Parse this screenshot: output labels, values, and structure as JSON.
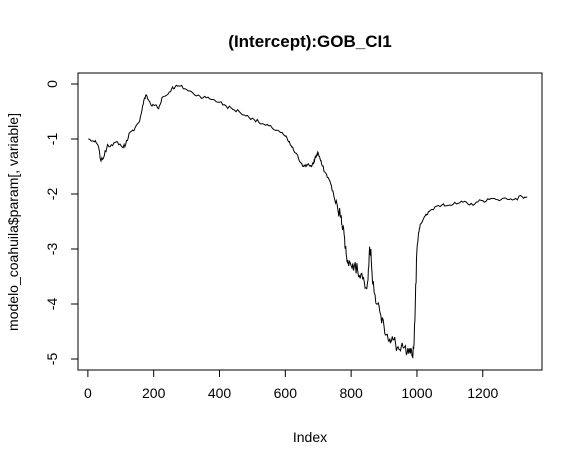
{
  "chart_data": {
    "type": "line",
    "title": "(Intercept):GOB_CI1",
    "xlabel": "Index",
    "ylabel": "modelo_coahuila$param[, variable]",
    "xlim": [
      -30,
      1380
    ],
    "ylim": [
      -5.2,
      0.2
    ],
    "xticks": [
      0,
      200,
      400,
      600,
      800,
      1000,
      1200
    ],
    "yticks": [
      0,
      -1,
      -2,
      -3,
      -4,
      -5
    ],
    "grid": false,
    "legend": "none",
    "color": "#000000",
    "series": [
      {
        "points": [
          [
            1,
            -1.0
          ],
          [
            20,
            -1.05
          ],
          [
            30,
            -1.1
          ],
          [
            40,
            -1.4
          ],
          [
            50,
            -1.3
          ],
          [
            60,
            -1.1
          ],
          [
            75,
            -1.12
          ],
          [
            90,
            -1.05
          ],
          [
            105,
            -1.15
          ],
          [
            115,
            -1.1
          ],
          [
            125,
            -0.9
          ],
          [
            140,
            -0.85
          ],
          [
            155,
            -0.7
          ],
          [
            165,
            -0.45
          ],
          [
            170,
            -0.3
          ],
          [
            178,
            -0.2
          ],
          [
            185,
            -0.3
          ],
          [
            195,
            -0.4
          ],
          [
            205,
            -0.38
          ],
          [
            215,
            -0.45
          ],
          [
            225,
            -0.25
          ],
          [
            240,
            -0.2
          ],
          [
            255,
            -0.08
          ],
          [
            265,
            -0.05
          ],
          [
            280,
            -0.04
          ],
          [
            300,
            -0.1
          ],
          [
            320,
            -0.17
          ],
          [
            340,
            -0.22
          ],
          [
            360,
            -0.25
          ],
          [
            380,
            -0.28
          ],
          [
            400,
            -0.33
          ],
          [
            420,
            -0.4
          ],
          [
            440,
            -0.46
          ],
          [
            460,
            -0.5
          ],
          [
            480,
            -0.58
          ],
          [
            500,
            -0.62
          ],
          [
            520,
            -0.7
          ],
          [
            540,
            -0.75
          ],
          [
            560,
            -0.8
          ],
          [
            580,
            -0.85
          ],
          [
            600,
            -0.95
          ],
          [
            610,
            -1.05
          ],
          [
            620,
            -1.15
          ],
          [
            630,
            -1.25
          ],
          [
            640,
            -1.35
          ],
          [
            650,
            -1.45
          ],
          [
            660,
            -1.5
          ],
          [
            670,
            -1.45
          ],
          [
            680,
            -1.5
          ],
          [
            685,
            -1.45
          ],
          [
            690,
            -1.35
          ],
          [
            695,
            -1.3
          ],
          [
            700,
            -1.25
          ],
          [
            705,
            -1.35
          ],
          [
            710,
            -1.45
          ],
          [
            720,
            -1.6
          ],
          [
            730,
            -1.7
          ],
          [
            740,
            -1.85
          ],
          [
            750,
            -2.1
          ],
          [
            760,
            -2.3
          ],
          [
            770,
            -2.4
          ],
          [
            775,
            -2.6
          ],
          [
            780,
            -2.8
          ],
          [
            785,
            -3.1
          ],
          [
            790,
            -3.2
          ],
          [
            800,
            -3.3
          ],
          [
            810,
            -3.3
          ],
          [
            820,
            -3.4
          ],
          [
            830,
            -3.45
          ],
          [
            840,
            -3.6
          ],
          [
            850,
            -3.6
          ],
          [
            855,
            -3.1
          ],
          [
            860,
            -3.0
          ],
          [
            865,
            -3.6
          ],
          [
            870,
            -3.8
          ],
          [
            880,
            -4.0
          ],
          [
            890,
            -4.2
          ],
          [
            900,
            -4.4
          ],
          [
            910,
            -4.55
          ],
          [
            920,
            -4.7
          ],
          [
            930,
            -4.65
          ],
          [
            940,
            -4.8
          ],
          [
            950,
            -4.85
          ],
          [
            960,
            -4.8
          ],
          [
            970,
            -4.9
          ],
          [
            980,
            -4.9
          ],
          [
            985,
            -4.95
          ],
          [
            990,
            -4.8
          ],
          [
            995,
            -4.0
          ],
          [
            1000,
            -3.0
          ],
          [
            1005,
            -2.7
          ],
          [
            1010,
            -2.55
          ],
          [
            1020,
            -2.45
          ],
          [
            1030,
            -2.38
          ],
          [
            1040,
            -2.3
          ],
          [
            1060,
            -2.22
          ],
          [
            1080,
            -2.18
          ],
          [
            1100,
            -2.2
          ],
          [
            1120,
            -2.18
          ],
          [
            1140,
            -2.15
          ],
          [
            1160,
            -2.2
          ],
          [
            1180,
            -2.15
          ],
          [
            1200,
            -2.12
          ],
          [
            1220,
            -2.1
          ],
          [
            1240,
            -2.1
          ],
          [
            1260,
            -2.08
          ],
          [
            1280,
            -2.1
          ],
          [
            1300,
            -2.08
          ],
          [
            1320,
            -2.05
          ],
          [
            1335,
            -2.05
          ]
        ]
      }
    ]
  }
}
